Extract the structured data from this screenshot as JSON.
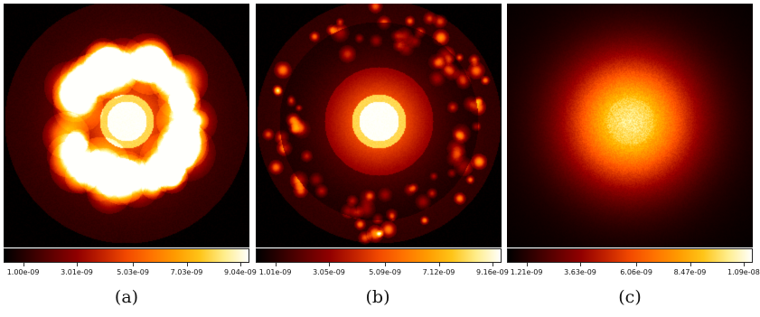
{
  "figure": {
    "panels": [
      {
        "caption": "(a)",
        "colorbar": {
          "colormap": "heat",
          "ticks": [
            "1.00e-09",
            "3.01e-09",
            "5.03e-09",
            "7.03e-09",
            "9.04e-09"
          ]
        }
      },
      {
        "caption": "(b)",
        "colorbar": {
          "colormap": "heat",
          "ticks": [
            "1.01e-09",
            "3.05e-09",
            "5.09e-09",
            "7.12e-09",
            "9.16e-09"
          ]
        }
      },
      {
        "caption": "(c)",
        "colorbar": {
          "colormap": "heat",
          "ticks": [
            "1.21e-09",
            "3.63e-09",
            "6.06e-09",
            "8.47e-09",
            "1.09e-08"
          ]
        }
      }
    ],
    "colors": {
      "background": "#000000",
      "low": "#2a0e00",
      "mid": "#ff6a00",
      "high": "#ffffff"
    }
  }
}
